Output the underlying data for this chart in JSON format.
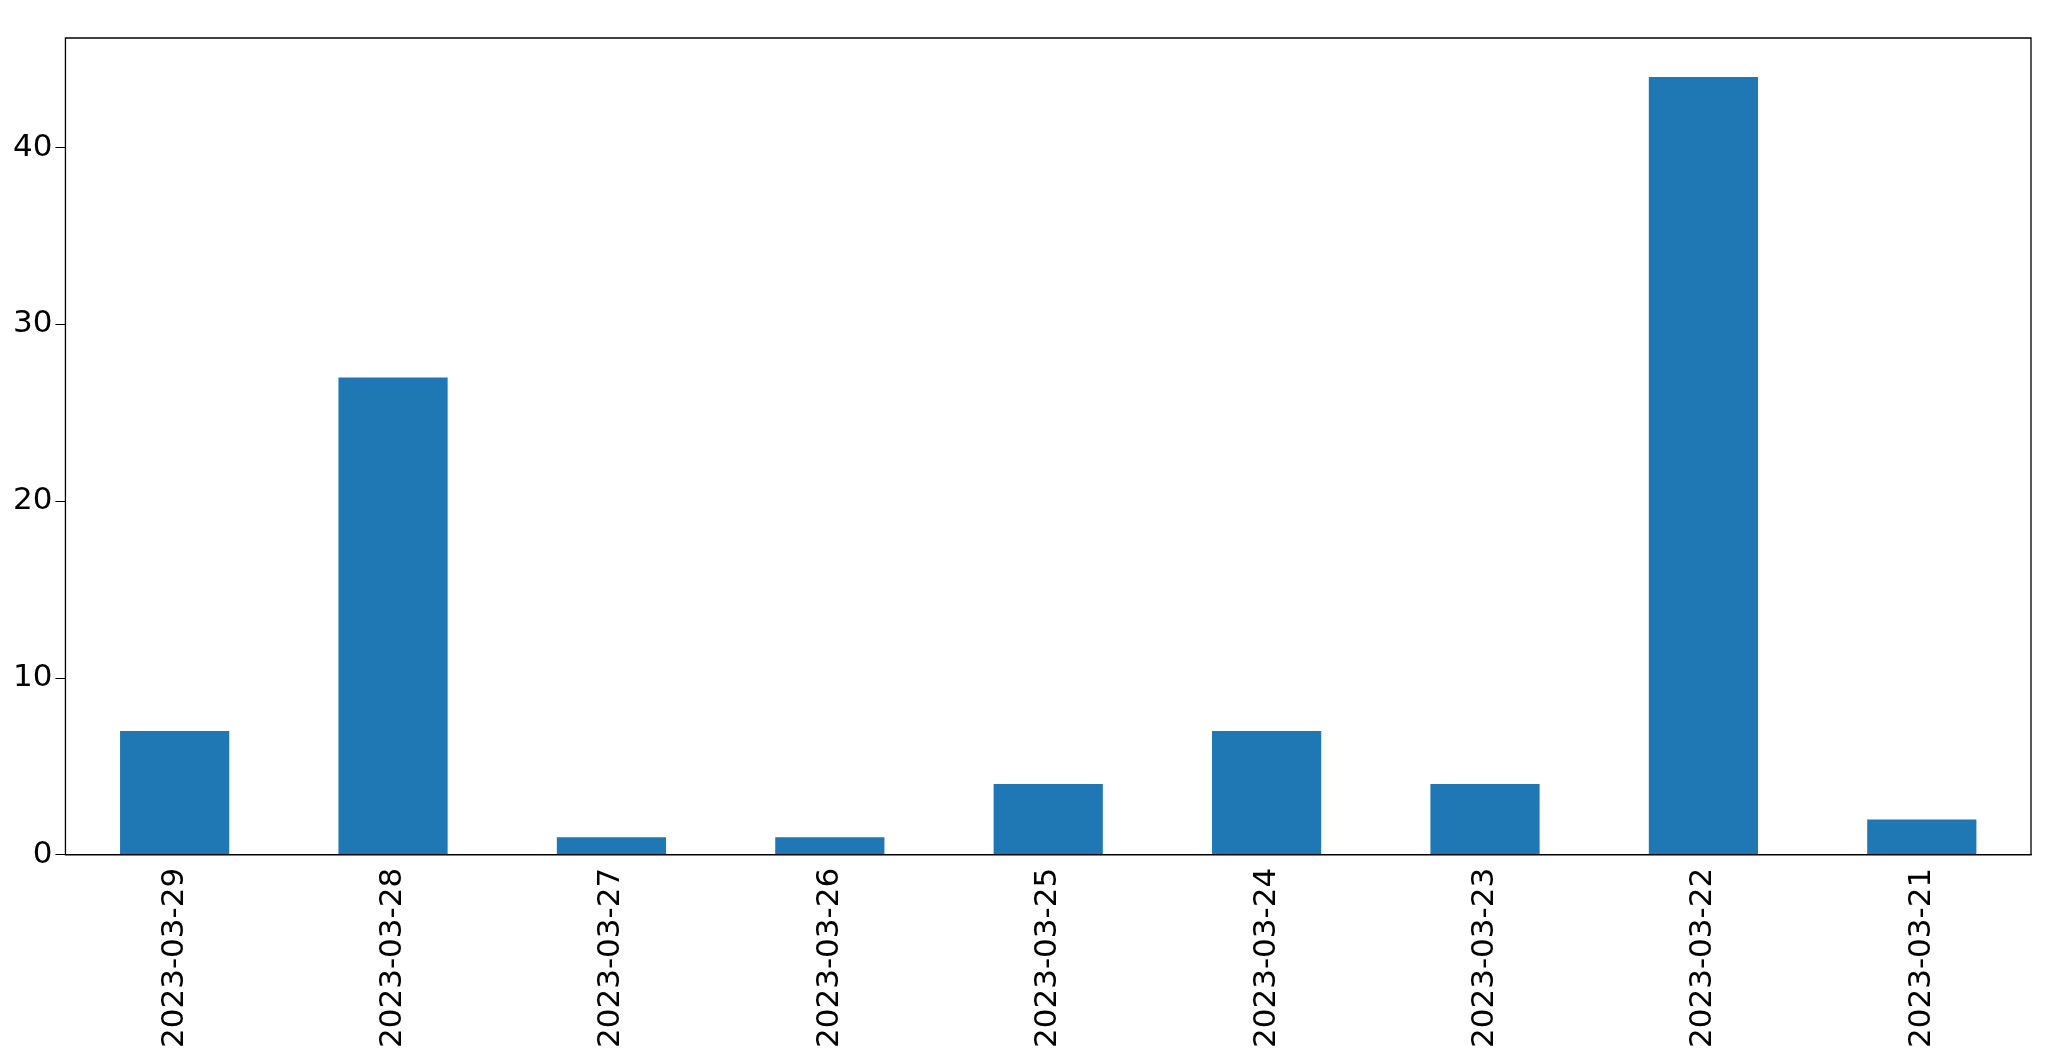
{
  "chart_data": {
    "type": "bar",
    "categories": [
      "2023-03-29",
      "2023-03-28",
      "2023-03-27",
      "2023-03-26",
      "2023-03-25",
      "2023-03-24",
      "2023-03-23",
      "2023-03-22",
      "2023-03-21"
    ],
    "values": [
      7,
      27,
      1,
      1,
      4,
      7,
      4,
      44,
      2
    ],
    "color": "#1f77b4",
    "ylim": [
      0,
      46.2
    ],
    "yticks": [
      0,
      10,
      20,
      30,
      40
    ]
  }
}
